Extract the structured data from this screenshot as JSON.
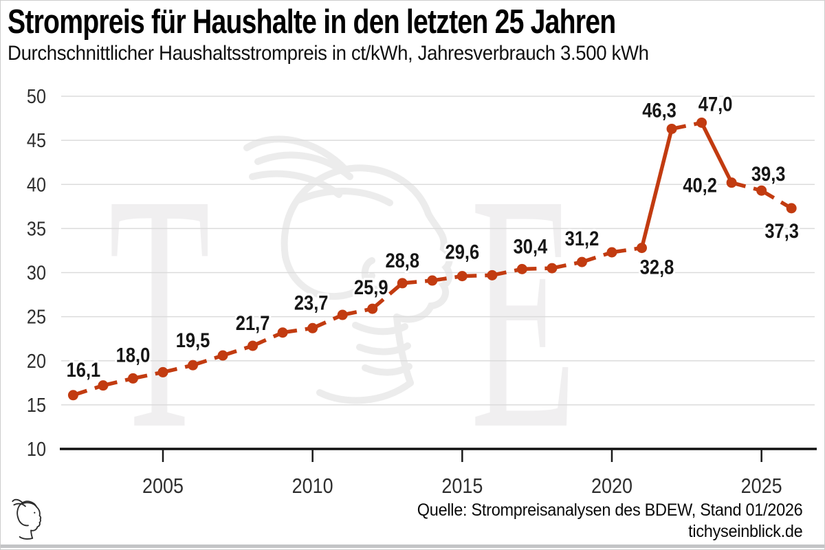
{
  "page": {
    "watermark_letters": [
      "T",
      "E"
    ]
  },
  "chart_data": {
    "type": "line",
    "title": "Strompreis für Haushalte in den letzten 25 Jahren",
    "subtitle": "Durchschnittlicher Haushaltsstrompreis in ct/kWh, Jahresverbrauch 3.500 kWh",
    "series_name": "Durchschnittlicher Haushaltsstrompreis",
    "unit": "ct/kWh",
    "x": [
      2002,
      2003,
      2004,
      2005,
      2006,
      2007,
      2008,
      2009,
      2010,
      2011,
      2012,
      2013,
      2014,
      2015,
      2016,
      2017,
      2018,
      2019,
      2020,
      2021,
      2022,
      2023,
      2024,
      2025,
      2026
    ],
    "values": [
      16.1,
      17.2,
      18.0,
      18.7,
      19.5,
      20.6,
      21.7,
      23.2,
      23.7,
      25.2,
      25.9,
      28.8,
      29.1,
      29.6,
      29.7,
      30.4,
      30.5,
      31.2,
      32.3,
      32.8,
      46.3,
      47.0,
      40.2,
      39.3,
      37.3
    ],
    "point_labels": [
      "16,1",
      null,
      "18,0",
      null,
      "19,5",
      null,
      "21,7",
      null,
      "23,7",
      null,
      "25,9",
      "28,8",
      null,
      "29,6",
      null,
      "30,4",
      null,
      "31,2",
      null,
      "32,8",
      "46,3",
      "47,0",
      "40,2",
      "39,3",
      "37,3"
    ],
    "label_offsets": [
      [
        15,
        -37
      ],
      null,
      [
        0,
        -34
      ],
      null,
      [
        0,
        -36
      ],
      null,
      [
        0,
        -33
      ],
      null,
      [
        -2,
        -37
      ],
      null,
      [
        -2,
        -31
      ],
      [
        0,
        -33
      ],
      null,
      [
        0,
        -35
      ],
      null,
      [
        12,
        -33
      ],
      null,
      [
        0,
        -34
      ],
      null,
      [
        22,
        28
      ],
      [
        -18,
        -27
      ],
      [
        20,
        -27
      ],
      [
        -46,
        4
      ],
      [
        10,
        -24
      ],
      [
        -14,
        33
      ]
    ],
    "xticks": [
      2005,
      2010,
      2015,
      2020,
      2025
    ],
    "yticks": [
      10,
      15,
      20,
      25,
      30,
      35,
      40,
      45,
      50
    ],
    "xlim": [
      2001.6,
      2026.8
    ],
    "ylim": [
      10,
      50
    ],
    "grid": "horizontal",
    "legend": "none",
    "line_color": "#c23b10",
    "line_style": "dashed",
    "marker": "circle",
    "steep_solid_threshold": 5
  },
  "footer": {
    "source": "Quelle: Strompreisanalysen des BDEW, Stand 01/2026",
    "website": "tichyseinblick.de"
  }
}
